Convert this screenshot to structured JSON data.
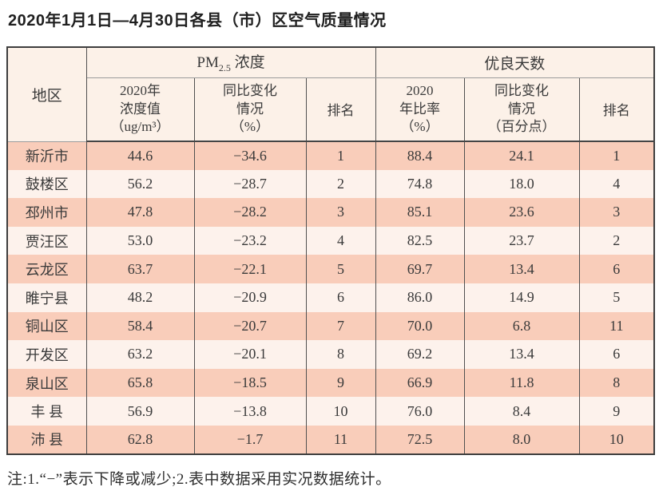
{
  "title": "2020年1月1日—4月30日各县（市）区空气质量情况",
  "table": {
    "region_header": "地区",
    "pm_group": {
      "prefix": "PM",
      "sub": "2.5",
      "suffix": " 浓度"
    },
    "good_group": "优良天数",
    "sub_headers": {
      "pm_value": [
        "2020年",
        "浓度值",
        "（ug/m³）"
      ],
      "pm_change": [
        "同比变化",
        "情况",
        "（%）"
      ],
      "pm_rank": "排名",
      "good_rate": [
        "2020",
        "年比率",
        "（%）"
      ],
      "good_change": [
        "同比变化",
        "情况",
        "（百分点）"
      ],
      "good_rank": "排名"
    },
    "rows": [
      {
        "region": "新沂市",
        "pm_value": "44.6",
        "pm_change": "−34.6",
        "pm_rank": "1",
        "good_rate": "88.4",
        "good_change": "24.1",
        "good_rank": "1"
      },
      {
        "region": "鼓楼区",
        "pm_value": "56.2",
        "pm_change": "−28.7",
        "pm_rank": "2",
        "good_rate": "74.8",
        "good_change": "18.0",
        "good_rank": "4"
      },
      {
        "region": "邳州市",
        "pm_value": "47.8",
        "pm_change": "−28.2",
        "pm_rank": "3",
        "good_rate": "85.1",
        "good_change": "23.6",
        "good_rank": "3"
      },
      {
        "region": "贾汪区",
        "pm_value": "53.0",
        "pm_change": "−23.2",
        "pm_rank": "4",
        "good_rate": "82.5",
        "good_change": "23.7",
        "good_rank": "2"
      },
      {
        "region": "云龙区",
        "pm_value": "63.7",
        "pm_change": "−22.1",
        "pm_rank": "5",
        "good_rate": "69.7",
        "good_change": "13.4",
        "good_rank": "6"
      },
      {
        "region": "睢宁县",
        "pm_value": "48.2",
        "pm_change": "−20.9",
        "pm_rank": "6",
        "good_rate": "86.0",
        "good_change": "14.9",
        "good_rank": "5"
      },
      {
        "region": "铜山区",
        "pm_value": "58.4",
        "pm_change": "−20.7",
        "pm_rank": "7",
        "good_rate": "70.0",
        "good_change": "6.8",
        "good_rank": "11"
      },
      {
        "region": "开发区",
        "pm_value": "63.2",
        "pm_change": "−20.1",
        "pm_rank": "8",
        "good_rate": "69.2",
        "good_change": "13.4",
        "good_rank": "6"
      },
      {
        "region": "泉山区",
        "pm_value": "65.8",
        "pm_change": "−18.5",
        "pm_rank": "9",
        "good_rate": "66.9",
        "good_change": "11.8",
        "good_rank": "8"
      },
      {
        "region": "丰 县",
        "pm_value": "56.9",
        "pm_change": "−13.8",
        "pm_rank": "10",
        "good_rate": "76.0",
        "good_change": "8.4",
        "good_rank": "9"
      },
      {
        "region": "沛 县",
        "pm_value": "62.8",
        "pm_change": "−1.7",
        "pm_rank": "11",
        "good_rate": "72.5",
        "good_change": "8.0",
        "good_rank": "10"
      }
    ]
  },
  "note": "注:1.“−”表示下降或减少;2.表中数据采用实况数据统计。",
  "colors": {
    "row_odd_bg": "#f9cdba",
    "row_even_bg": "#fdf2ec",
    "header_bg": "#fcf1e8",
    "border_dark": "#3e3e3e",
    "border_inner": "#515151",
    "border_light": "#9b9b9b",
    "text": "#3a3a3a"
  },
  "chart_data": {
    "type": "table",
    "title": "2020年1月1日—4月30日各县（市）区空气质量情况",
    "column_groups": [
      "PM2.5浓度",
      "优良天数"
    ],
    "columns": [
      "地区",
      "2020年浓度值（ug/m³）",
      "同比变化情况（%）",
      "排名",
      "2020年比率（%）",
      "同比变化情况（百分点）",
      "排名"
    ],
    "rows": [
      [
        "新沂市",
        44.6,
        -34.6,
        1,
        88.4,
        24.1,
        1
      ],
      [
        "鼓楼区",
        56.2,
        -28.7,
        2,
        74.8,
        18.0,
        4
      ],
      [
        "邳州市",
        47.8,
        -28.2,
        3,
        85.1,
        23.6,
        3
      ],
      [
        "贾汪区",
        53.0,
        -23.2,
        4,
        82.5,
        23.7,
        2
      ],
      [
        "云龙区",
        63.7,
        -22.1,
        5,
        69.7,
        13.4,
        6
      ],
      [
        "睢宁县",
        48.2,
        -20.9,
        6,
        86.0,
        14.9,
        5
      ],
      [
        "铜山区",
        58.4,
        -20.7,
        7,
        70.0,
        6.8,
        11
      ],
      [
        "开发区",
        63.2,
        -20.1,
        8,
        69.2,
        13.4,
        6
      ],
      [
        "泉山区",
        65.8,
        -18.5,
        9,
        66.9,
        11.8,
        8
      ],
      [
        "丰县",
        56.9,
        -13.8,
        10,
        76.0,
        8.4,
        9
      ],
      [
        "沛县",
        62.8,
        -1.7,
        11,
        72.5,
        8.0,
        10
      ]
    ],
    "note": "注:1.“−”表示下降或减少;2.表中数据采用实况数据统计。"
  }
}
